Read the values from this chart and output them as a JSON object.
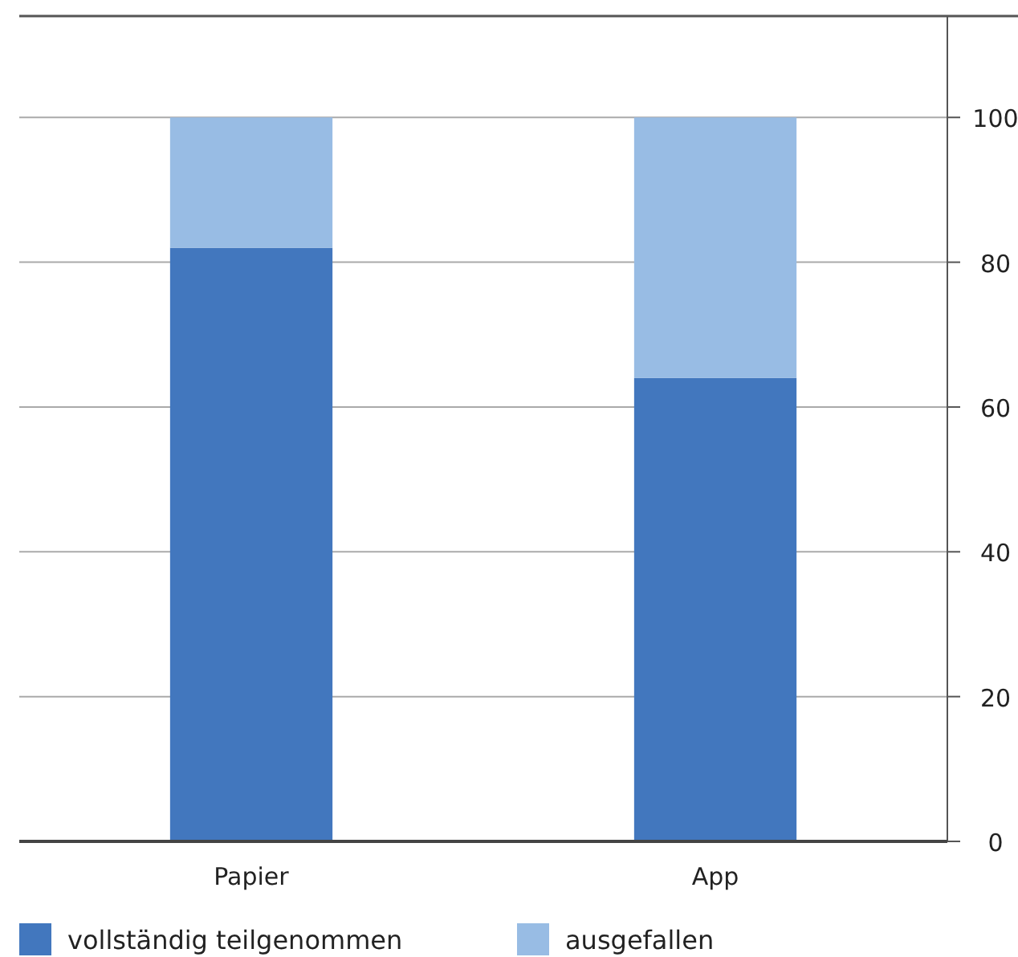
{
  "chart_data": {
    "type": "bar",
    "stacked": true,
    "categories": [
      "Papier",
      "App"
    ],
    "series": [
      {
        "name": "vollständig teilgenommen",
        "color": "#4277be",
        "values": [
          82,
          64
        ]
      },
      {
        "name": "ausgefallen",
        "color": "#98bce4",
        "values": [
          18,
          36
        ]
      }
    ],
    "ylim": [
      0,
      114
    ],
    "yticks": [
      0,
      20,
      40,
      60,
      80,
      100
    ],
    "grid": "y",
    "legend": "bottom"
  }
}
